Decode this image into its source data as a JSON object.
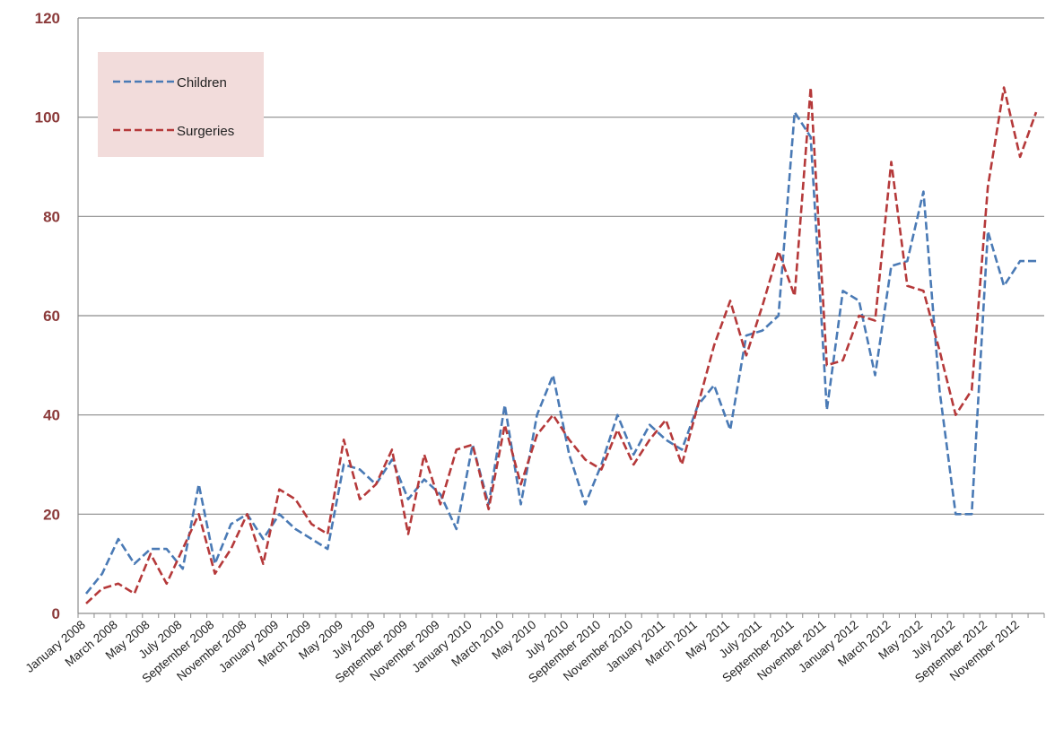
{
  "chart_data": {
    "type": "line",
    "title": "",
    "xlabel": "",
    "ylabel": "",
    "ylim": [
      0,
      120
    ],
    "yticks": [
      "0",
      "20",
      "40",
      "60",
      "80",
      "100",
      "120"
    ],
    "grid": "horizontal",
    "legend_position": "top-left",
    "x": [
      "January 2008",
      "February 2008",
      "March 2008",
      "April 2008",
      "May 2008",
      "June 2008",
      "July 2008",
      "August 2008",
      "September 2008",
      "October 2008",
      "November 2008",
      "December 2008",
      "January 2009",
      "February 2009",
      "March 2009",
      "April 2009",
      "May 2009",
      "June 2009",
      "July 2009",
      "August 2009",
      "September 2009",
      "October 2009",
      "November 2009",
      "December 2009",
      "January 2010",
      "February 2010",
      "March 2010",
      "April 2010",
      "May 2010",
      "June 2010",
      "July 2010",
      "August 2010",
      "September 2010",
      "October 2010",
      "November 2010",
      "December 2010",
      "January 2011",
      "February 2011",
      "March 2011",
      "April 2011",
      "May 2011",
      "June 2011",
      "July 2011",
      "August 2011",
      "September 2011",
      "October 2011",
      "November 2011",
      "December 2011",
      "January 2012",
      "February 2012",
      "March 2012",
      "April 2012",
      "May 2012",
      "June 2012",
      "July 2012",
      "August 2012",
      "September 2012",
      "October 2012",
      "November 2012",
      "December 2012"
    ],
    "xtick_labels": [
      "January 2008",
      "March 2008",
      "May 2008",
      "July 2008",
      "September 2008",
      "November 2008",
      "January 2009",
      "March 2009",
      "May 2009",
      "July 2009",
      "September 2009",
      "November 2009",
      "January 2010",
      "March 2010",
      "May 2010",
      "July 2010",
      "September 2010",
      "November 2010",
      "January 2011",
      "March 2011",
      "May 2011",
      "July 2011",
      "September 2011",
      "November 2011",
      "January 2012",
      "March 2012",
      "May 2012",
      "July 2012",
      "September 2012",
      "November 2012"
    ],
    "series": [
      {
        "name": "Children",
        "color": "#4a7ab5",
        "dash": "dashed",
        "values": [
          4,
          8,
          15,
          10,
          13,
          13,
          9,
          26,
          10,
          18,
          20,
          15,
          20,
          17,
          15,
          13,
          30,
          29,
          26,
          31,
          23,
          27,
          24,
          17,
          34,
          22,
          42,
          22,
          40,
          48,
          32,
          22,
          30,
          40,
          32,
          38,
          35,
          33,
          42,
          46,
          37,
          56,
          57,
          60,
          101,
          96,
          41,
          65,
          63,
          48,
          70,
          71,
          85,
          45,
          20,
          20,
          77,
          66,
          71,
          71
        ]
      },
      {
        "name": "Surgeries",
        "color": "#b5393a",
        "dash": "dashed",
        "values": [
          2,
          5,
          6,
          4,
          12,
          6,
          13,
          20,
          8,
          13,
          20,
          10,
          25,
          23,
          18,
          16,
          35,
          23,
          26,
          33,
          16,
          32,
          22,
          33,
          34,
          21,
          38,
          26,
          36,
          40,
          35,
          31,
          29,
          37,
          30,
          35,
          39,
          30,
          42,
          54,
          63,
          52,
          62,
          73,
          64,
          106,
          50,
          51,
          60,
          59,
          91,
          66,
          65,
          53,
          40,
          45,
          86,
          106,
          92,
          101
        ]
      }
    ]
  }
}
